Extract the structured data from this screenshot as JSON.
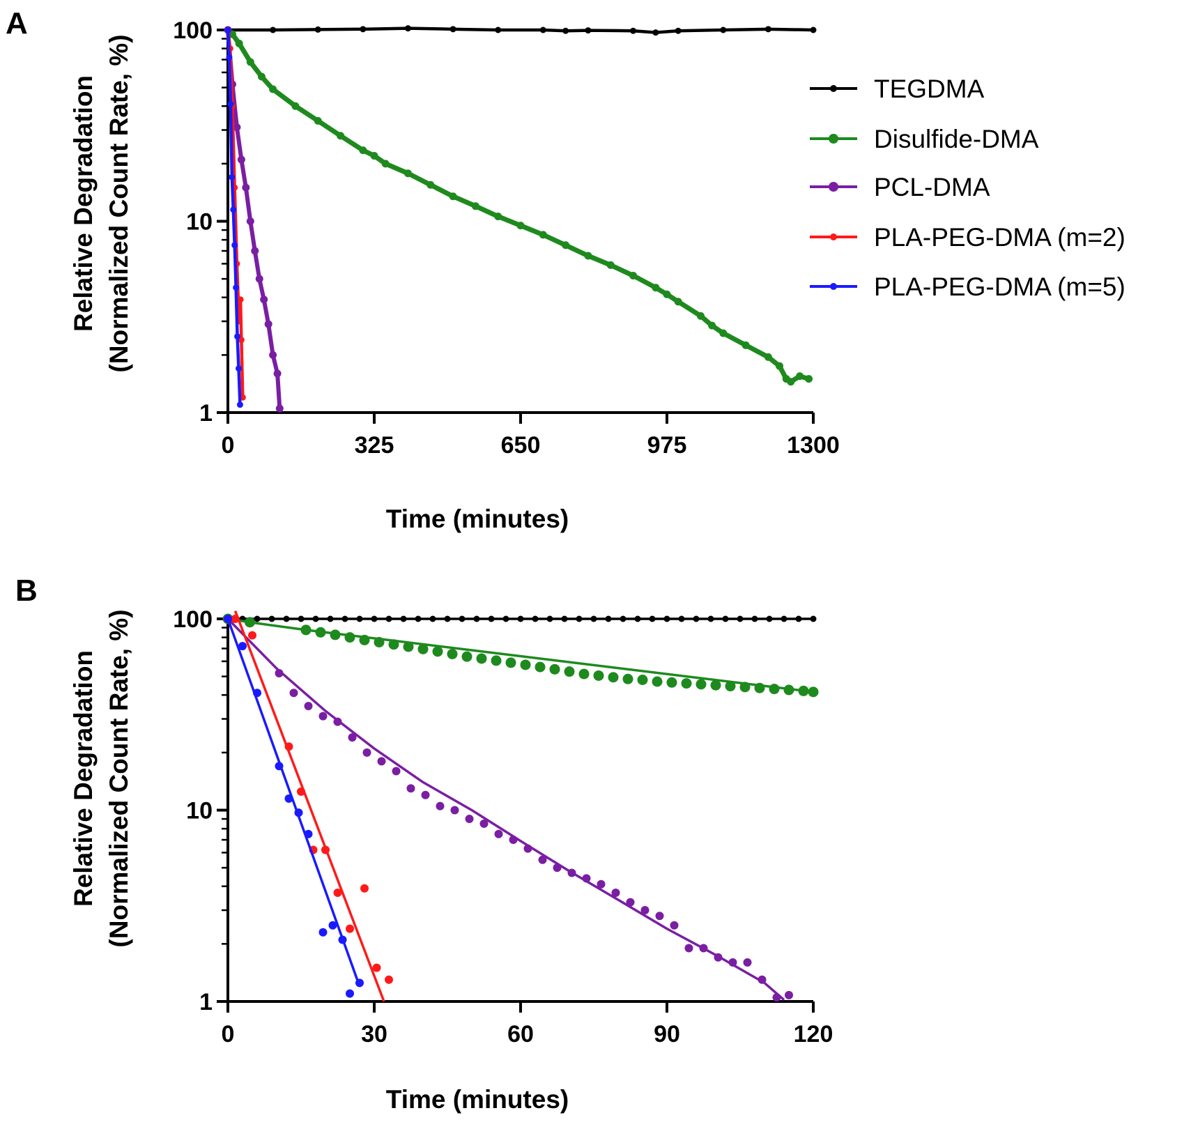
{
  "chart_data": [
    {
      "panel": "A",
      "type": "line",
      "xlabel": "Time (minutes)",
      "ylabel": [
        "Relative Degradation",
        "(Normalized Count Rate, %)"
      ],
      "xlim": [
        0,
        1300
      ],
      "ylim": [
        1,
        100
      ],
      "yscale": "log",
      "xticks": [
        "0",
        "325",
        "650",
        "975",
        "1300"
      ],
      "yticks": [
        "1",
        "10",
        "100"
      ],
      "legend_position": "right",
      "grid": false,
      "series": [
        {
          "name": "TEGDMA",
          "color": "#000000",
          "x": [
            0,
            100,
            200,
            300,
            400,
            500,
            600,
            700,
            750,
            800,
            900,
            950,
            1000,
            1100,
            1200,
            1300
          ],
          "y": [
            100,
            100,
            100.5,
            101,
            102,
            101,
            100,
            100,
            99,
            99.5,
            99,
            97,
            99,
            100,
            101,
            100
          ]
        },
        {
          "name": "Disulfide-DMA",
          "color": "#1e8a1e",
          "x": [
            0,
            10,
            25,
            50,
            75,
            100,
            150,
            200,
            250,
            300,
            325,
            350,
            400,
            450,
            500,
            550,
            600,
            650,
            700,
            750,
            800,
            850,
            900,
            950,
            975,
            1000,
            1050,
            1075,
            1100,
            1150,
            1200,
            1225,
            1240,
            1250,
            1270,
            1290
          ],
          "y": [
            100,
            95,
            85,
            68,
            57,
            49,
            40,
            33.5,
            28,
            23.5,
            22,
            20,
            17.8,
            15.5,
            13.5,
            12,
            10.6,
            9.5,
            8.5,
            7.5,
            6.6,
            5.9,
            5.2,
            4.5,
            4.15,
            3.8,
            3.2,
            2.85,
            2.6,
            2.25,
            1.95,
            1.75,
            1.5,
            1.45,
            1.55,
            1.5
          ]
        },
        {
          "name": "PCL-DMA",
          "color": "#7a1ea3",
          "x": [
            0,
            10,
            20,
            30,
            40,
            50,
            60,
            70,
            80,
            90,
            100,
            110,
            115
          ],
          "y": [
            100,
            52,
            31,
            21,
            15,
            10,
            7,
            5,
            3.9,
            2.9,
            2.0,
            1.6,
            1.05
          ]
        },
        {
          "name": "PLA-PEG-DMA (m=2)",
          "color": "#ff1a1a",
          "x": [
            0,
            5,
            10,
            15,
            20,
            25,
            28,
            30,
            33
          ],
          "y": [
            100,
            80,
            40,
            15,
            6,
            3,
            3.9,
            2.4,
            1.2
          ]
        },
        {
          "name": "PLA-PEG-DMA (m=5)",
          "color": "#1a1aff",
          "x": [
            0,
            3,
            6,
            9,
            12,
            15,
            18,
            21,
            24,
            27
          ],
          "y": [
            100,
            72,
            41,
            17,
            11.5,
            7.5,
            4.5,
            2.5,
            1.7,
            1.1
          ]
        }
      ]
    },
    {
      "panel": "B",
      "type": "scatter",
      "xlabel": "Time (minutes)",
      "ylabel": [
        "Relative Degradation",
        "(Normalized Count Rate, %)"
      ],
      "xlim": [
        0,
        120
      ],
      "ylim": [
        1,
        100
      ],
      "yscale": "log",
      "xticks": [
        "0",
        "30",
        "60",
        "90",
        "120"
      ],
      "yticks": [
        "1",
        "10",
        "100"
      ],
      "grid": false,
      "series": [
        {
          "name": "TEGDMA",
          "color": "#000000",
          "x": [
            0,
            3,
            6,
            9,
            12,
            15,
            18,
            21,
            24,
            27,
            30,
            33,
            36,
            39,
            42,
            45,
            48,
            51,
            54,
            57,
            60,
            63,
            66,
            69,
            72,
            75,
            78,
            81,
            84,
            87,
            90,
            93,
            96,
            99,
            102,
            105,
            108,
            111,
            114,
            117,
            120
          ],
          "y": [
            100,
            100,
            100,
            100,
            100,
            100,
            100,
            100,
            100,
            100,
            100,
            100,
            100,
            100,
            100,
            100,
            100,
            100,
            100,
            100,
            100,
            100,
            100,
            100,
            100,
            100,
            100,
            100,
            100,
            100,
            100,
            100,
            100,
            100,
            100,
            100,
            100,
            100,
            100,
            100,
            100
          ],
          "fit": [
            [
              0,
              100
            ],
            [
              120,
              100
            ]
          ]
        },
        {
          "name": "Disulfide-DMA",
          "color": "#1e8a1e",
          "x": [
            0,
            4.5,
            16,
            19,
            22,
            25,
            28,
            31,
            34,
            37,
            40,
            43,
            46,
            49,
            52,
            55,
            58,
            61,
            64,
            67,
            70,
            73,
            76,
            79,
            82,
            85,
            88,
            91,
            94,
            97,
            100,
            103,
            106,
            109,
            112,
            115,
            118,
            120
          ],
          "y": [
            100,
            96,
            87.5,
            85,
            82.5,
            80,
            77.5,
            75.5,
            73.5,
            71.5,
            69.5,
            67.5,
            65.5,
            63.5,
            62,
            60.5,
            59,
            57.5,
            56,
            54.5,
            53,
            51.5,
            50.5,
            49.5,
            48.5,
            48,
            47,
            46.5,
            46,
            45.5,
            45,
            44.5,
            44,
            43.5,
            43,
            42.5,
            42,
            41.5
          ],
          "fit": [
            [
              0,
              100
            ],
            [
              4.5,
              96
            ],
            [
              16,
              87.5
            ],
            [
              120,
              41.5
            ]
          ]
        },
        {
          "name": "PCL-DMA",
          "color": "#7a1ea3",
          "x": [
            0,
            10.5,
            13.5,
            16.5,
            19.5,
            22.5,
            25.5,
            28.5,
            31.5,
            34.5,
            37.5,
            40.5,
            43.5,
            46.5,
            49.5,
            52.5,
            55.5,
            58.5,
            61.5,
            64.5,
            67.5,
            70.5,
            73.5,
            76.5,
            79.5,
            82.5,
            85.5,
            88.5,
            91.5,
            94.5,
            97.5,
            100.5,
            103.5,
            106.5,
            109.5,
            112.5,
            115
          ],
          "y": [
            100,
            52,
            41,
            35,
            31,
            29,
            24,
            20,
            18,
            16,
            13,
            12,
            10.5,
            10,
            9,
            8.5,
            7.5,
            7,
            6.3,
            5.5,
            5,
            4.7,
            4.4,
            4.1,
            3.7,
            3.3,
            3.0,
            2.8,
            2.5,
            1.9,
            1.9,
            1.7,
            1.6,
            1.6,
            1.3,
            1.05,
            1.08
          ],
          "fit": [
            [
              0,
              100
            ],
            [
              10,
              55
            ],
            [
              20,
              33
            ],
            [
              30,
              21
            ],
            [
              40,
              14
            ],
            [
              50,
              10
            ],
            [
              60,
              6.9
            ],
            [
              70,
              4.8
            ],
            [
              80,
              3.4
            ],
            [
              90,
              2.4
            ],
            [
              100,
              1.75
            ],
            [
              110,
              1.25
            ],
            [
              114,
              1.02
            ]
          ]
        },
        {
          "name": "PLA-PEG-DMA (m=2)",
          "color": "#ff1a1a",
          "x": [
            1.5,
            5,
            12.5,
            15,
            17.5,
            20,
            22.5,
            25,
            28,
            30.5,
            33
          ],
          "y": [
            100,
            82,
            21.5,
            12.5,
            6.2,
            6.2,
            3.7,
            2.4,
            3.9,
            1.5,
            1.3
          ],
          "fit": [
            [
              1.5,
              110
            ],
            [
              32,
              1.0
            ]
          ]
        },
        {
          "name": "PLA-PEG-DMA (m=5)",
          "color": "#1a1aff",
          "x": [
            0,
            3,
            6,
            10.5,
            12.5,
            14.5,
            16.5,
            19.5,
            21.5,
            23.5,
            25,
            27
          ],
          "y": [
            100,
            72,
            41,
            17,
            11.5,
            9.7,
            7.5,
            2.3,
            2.5,
            2.1,
            1.1,
            1.25
          ],
          "fit": [
            [
              0,
              100
            ],
            [
              27,
              1.2
            ]
          ]
        }
      ]
    }
  ]
}
